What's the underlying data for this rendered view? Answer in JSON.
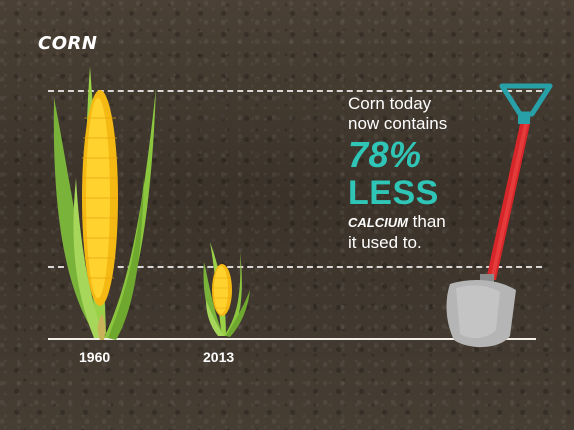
{
  "title": "CORN",
  "years": [
    "1960",
    "2013"
  ],
  "message": {
    "line1": "Corn today",
    "line2": "now contains",
    "percent": "78%",
    "less": "LESS",
    "nutrient": "CALCIUM",
    "tail_a": "than",
    "tail_b": "it used to."
  },
  "colors": {
    "accent": "#2fc6b7",
    "kernel": "#f7c21a",
    "husk": "#8cc63f",
    "shovel_handle": "#d7262a",
    "shovel_grip": "#27a0a8"
  },
  "icons": [
    "corn-cob-icon",
    "shovel-icon"
  ]
}
